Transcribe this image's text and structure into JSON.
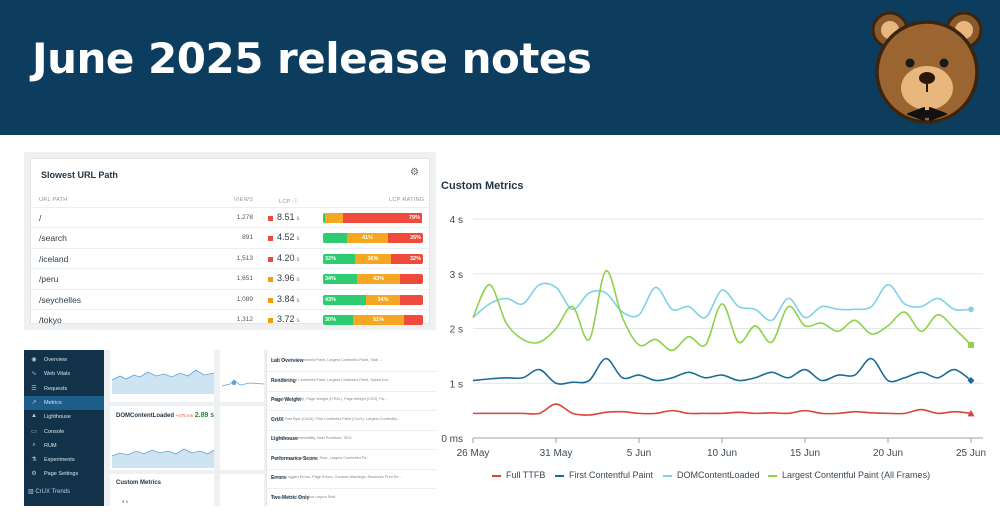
{
  "banner": {
    "title": "June 2025 release notes"
  },
  "url_panel": {
    "title": "Slowest URL Path",
    "columns": {
      "path": "URL PATH",
      "views": "VIEWS",
      "lcp": "LCP",
      "rating": "LCP RATING"
    },
    "rows": [
      {
        "path": "/",
        "views": "1,278",
        "lcp": "8.51",
        "unit": "s",
        "dot": "#e74c3c",
        "good": 2,
        "ni": 18,
        "poor": 79,
        "labels": [
          "",
          "",
          "79%"
        ]
      },
      {
        "path": "/search",
        "views": "891",
        "lcp": "4.52",
        "unit": "s",
        "dot": "#e74c3c",
        "good": 24,
        "ni": 41,
        "poor": 35,
        "labels": [
          "",
          "41%",
          "35%"
        ]
      },
      {
        "path": "/iceland",
        "views": "1,513",
        "lcp": "4.20",
        "unit": "s",
        "dot": "#e74c3c",
        "good": 32,
        "ni": 36,
        "poor": 32,
        "labels": [
          "32%",
          "36%",
          "32%"
        ]
      },
      {
        "path": "/peru",
        "views": "1,651",
        "lcp": "3.96",
        "unit": "s",
        "dot": "#f39c12",
        "good": 34,
        "ni": 43,
        "poor": 23,
        "labels": [
          "34%",
          "43%",
          ""
        ]
      },
      {
        "path": "/seychelles",
        "views": "1,089",
        "lcp": "3.84",
        "unit": "s",
        "dot": "#f39c12",
        "good": 43,
        "ni": 34,
        "poor": 23,
        "labels": [
          "43%",
          "34%",
          ""
        ]
      },
      {
        "path": "/tokyo",
        "views": "1,312",
        "lcp": "3.72",
        "unit": "s",
        "dot": "#f39c12",
        "good": 30,
        "ni": 51,
        "poor": 19,
        "labels": [
          "30%",
          "51%",
          ""
        ]
      }
    ]
  },
  "sidebar": {
    "items": [
      {
        "label": "Overview",
        "icon": "eye-icon"
      },
      {
        "label": "Web Vitals",
        "icon": "pulse-icon"
      },
      {
        "label": "Requests",
        "icon": "list-icon"
      },
      {
        "label": "Metrics",
        "icon": "trend-icon"
      },
      {
        "label": "Lighthouse",
        "icon": "lighthouse-icon"
      },
      {
        "label": "Console",
        "icon": "console-icon"
      },
      {
        "label": "RUM",
        "icon": "search-icon"
      },
      {
        "label": "Experiments",
        "icon": "flask-icon"
      },
      {
        "label": "Page Settings",
        "icon": "gear-icon"
      }
    ],
    "crux": "CrUX Trends",
    "dcl_label": "DOMContentLoaded",
    "dcl_delta": "+475 ms",
    "dcl_value": "2.89 s",
    "custom_metrics": "Custom Metrics",
    "axis_top": "4 s"
  },
  "metric_list": [
    {
      "name": "Lab Overview",
      "desc": "Full TTFB, First Contentful Paint, Largest Contentful Paint, Total ..."
    },
    {
      "name": "Rendering",
      "desc": "Full TTFB, First Contentful Paint, Largest Contentful Paint, Speed Ind..."
    },
    {
      "name": "Page Weight",
      "desc": "Page Weight (Total), Page Weight (HTML), Page Weight (CSS), Pa..."
    },
    {
      "name": "CrUX",
      "desc": "Time to First Byte (CrUX), First Contentful Paint (CrUX), Largest Contentful..."
    },
    {
      "name": "Lighthouse",
      "desc": "Performance, Accessibility, Best Practices, SEO"
    },
    {
      "name": "Performance Score",
      "desc": "Performance, Total Blocking Time, Largest Contentful Pa..."
    },
    {
      "name": "Errors",
      "desc": "Console Logged Errors, Page Errors, Console Warnings, Resource Print Err..."
    },
    {
      "name": "Two Metric Only",
      "desc": "Good (CrUX), Cumulative Layout Shift"
    }
  ],
  "chart": {
    "title": "Custom Metrics"
  },
  "chart_data": {
    "type": "line",
    "title": "Custom Metrics",
    "y_ticks": [
      "0 ms",
      "1 s",
      "2 s",
      "3 s",
      "4 s"
    ],
    "ylim": [
      0,
      4
    ],
    "x_ticks": [
      "26 May",
      "31 May",
      "5 Jun",
      "10 Jun",
      "15 Jun",
      "20 Jun",
      "25 Jun"
    ],
    "x": [
      "26 May",
      "27 May",
      "28 May",
      "29 May",
      "30 May",
      "31 May",
      "1 Jun",
      "2 Jun",
      "3 Jun",
      "4 Jun",
      "5 Jun",
      "6 Jun",
      "7 Jun",
      "8 Jun",
      "9 Jun",
      "10 Jun",
      "11 Jun",
      "12 Jun",
      "13 Jun",
      "14 Jun",
      "15 Jun",
      "16 Jun",
      "17 Jun",
      "18 Jun",
      "19 Jun",
      "20 Jun",
      "21 Jun",
      "22 Jun",
      "23 Jun",
      "24 Jun",
      "25 Jun"
    ],
    "grid": true,
    "legend": "bottom",
    "series": [
      {
        "name": "Full TTFB",
        "color": "#d9443a",
        "values": [
          0.45,
          0.45,
          0.45,
          0.45,
          0.45,
          0.62,
          0.45,
          0.42,
          0.47,
          0.48,
          0.45,
          0.45,
          0.5,
          0.45,
          0.45,
          0.45,
          0.47,
          0.45,
          0.46,
          0.45,
          0.5,
          0.45,
          0.45,
          0.48,
          0.46,
          0.45,
          0.45,
          0.52,
          0.45,
          0.48,
          0.45
        ]
      },
      {
        "name": "First Contentful Paint",
        "color": "#1b6c95",
        "values": [
          1.05,
          1.08,
          1.1,
          1.1,
          1.25,
          1.0,
          1.02,
          1.05,
          1.45,
          1.1,
          1.15,
          1.05,
          1.1,
          1.2,
          1.1,
          1.15,
          1.05,
          1.1,
          1.2,
          1.1,
          1.25,
          1.05,
          1.15,
          1.15,
          1.45,
          1.05,
          1.1,
          1.2,
          1.1,
          1.25,
          1.05
        ]
      },
      {
        "name": "DOMContentLoaded",
        "color": "#7fd1e6",
        "values": [
          2.2,
          2.45,
          2.55,
          2.45,
          2.8,
          2.75,
          2.35,
          2.65,
          2.65,
          2.3,
          2.25,
          2.75,
          2.35,
          2.4,
          2.2,
          2.7,
          2.4,
          2.35,
          2.15,
          2.55,
          2.2,
          2.4,
          2.35,
          2.35,
          2.4,
          2.8,
          2.45,
          2.4,
          2.55,
          2.35,
          2.35
        ]
      },
      {
        "name": "Largest Contentful Paint (All Frames)",
        "color": "#8ed24b",
        "values": [
          2.2,
          2.8,
          2.1,
          1.8,
          1.75,
          2.0,
          2.4,
          1.8,
          3.05,
          2.2,
          1.7,
          1.8,
          1.6,
          1.85,
          1.7,
          2.45,
          1.75,
          2.05,
          1.75,
          2.4,
          2.05,
          2.1,
          1.95,
          2.15,
          1.9,
          2.05,
          2.3,
          1.95,
          2.25,
          2.0,
          1.7
        ]
      }
    ]
  }
}
